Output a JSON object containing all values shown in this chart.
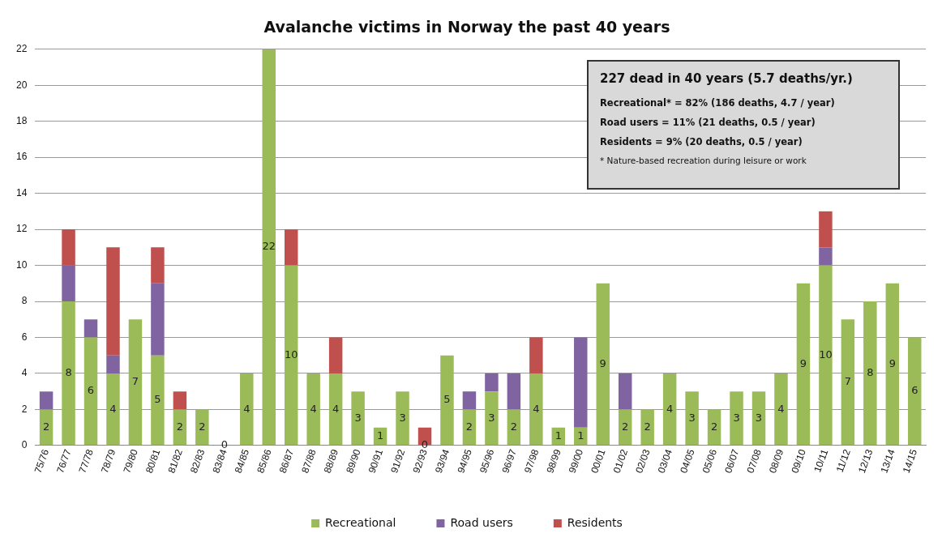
{
  "chart_data": {
    "type": "bar",
    "title": "Avalanche victims in Norway the past 40 years",
    "stacked": true,
    "categories": [
      "75/76",
      "76/77",
      "77/78",
      "78/79",
      "79/80",
      "80/81",
      "81/82",
      "82/83",
      "83/84",
      "84/85",
      "85/86",
      "86/87",
      "87/88",
      "88/89",
      "89/90",
      "90/91",
      "91/92",
      "92/93",
      "93/94",
      "94/95",
      "95/96",
      "96/97",
      "97/98",
      "98/99",
      "99/00",
      "00/01",
      "01/02",
      "02/03",
      "03/04",
      "04/05",
      "05/06",
      "06/07",
      "07/08",
      "08/09",
      "09/10",
      "10/11",
      "11/12",
      "12/13",
      "13/14",
      "14/15"
    ],
    "series": [
      {
        "name": "Recreational",
        "color": "#9bbb59",
        "values": [
          2,
          8,
          6,
          4,
          7,
          5,
          2,
          2,
          0,
          4,
          22,
          10,
          4,
          4,
          3,
          1,
          3,
          0,
          5,
          2,
          3,
          2,
          4,
          1,
          1,
          9,
          2,
          2,
          4,
          3,
          2,
          3,
          3,
          4,
          9,
          10,
          7,
          8,
          9,
          6
        ],
        "value_labels": [
          "2",
          "8",
          "6",
          "4",
          "7",
          "5",
          "2",
          "2",
          "0",
          "4",
          "22",
          "10",
          "4",
          "4",
          "3",
          "1",
          "3",
          "0",
          "5",
          "2",
          "3",
          "2",
          "4",
          "1",
          "1",
          "9",
          "2",
          "2",
          "4",
          "3",
          "2",
          "3",
          "3",
          "4",
          "9",
          "10",
          "7",
          "8",
          "9",
          "6"
        ]
      },
      {
        "name": "Road users",
        "color": "#8064a2",
        "values": [
          1,
          2,
          1,
          1,
          0,
          4,
          0,
          0,
          0,
          0,
          0,
          0,
          0,
          0,
          0,
          0,
          0,
          0,
          0,
          1,
          1,
          2,
          0,
          0,
          5,
          0,
          2,
          0,
          0,
          0,
          0,
          0,
          0,
          0,
          0,
          1,
          0,
          0,
          0,
          0
        ]
      },
      {
        "name": "Residents",
        "color": "#c0504d",
        "values": [
          0,
          2,
          0,
          6,
          0,
          2,
          1,
          0,
          0,
          0,
          0,
          2,
          0,
          2,
          0,
          0,
          0,
          1,
          0,
          0,
          0,
          0,
          2,
          0,
          0,
          0,
          0,
          0,
          0,
          0,
          0,
          0,
          0,
          0,
          0,
          2,
          0,
          0,
          0,
          0
        ]
      }
    ],
    "ylim": [
      0,
      22
    ],
    "yticks": [
      0,
      2,
      4,
      6,
      8,
      10,
      12,
      14,
      16,
      18,
      20,
      22
    ],
    "grid": "y",
    "legend": "bottom",
    "annotations": [
      "227 dead in 40 years (5.7 deaths/yr.)",
      "Recreational* = 82% (186 deaths, 4.7 / year)",
      "Road users = 11% (21 deaths, 0.5 / year)",
      "Residents = 9% (20 deaths, 0.5 / year)",
      "* Nature-based recreation during leisure or work"
    ]
  }
}
